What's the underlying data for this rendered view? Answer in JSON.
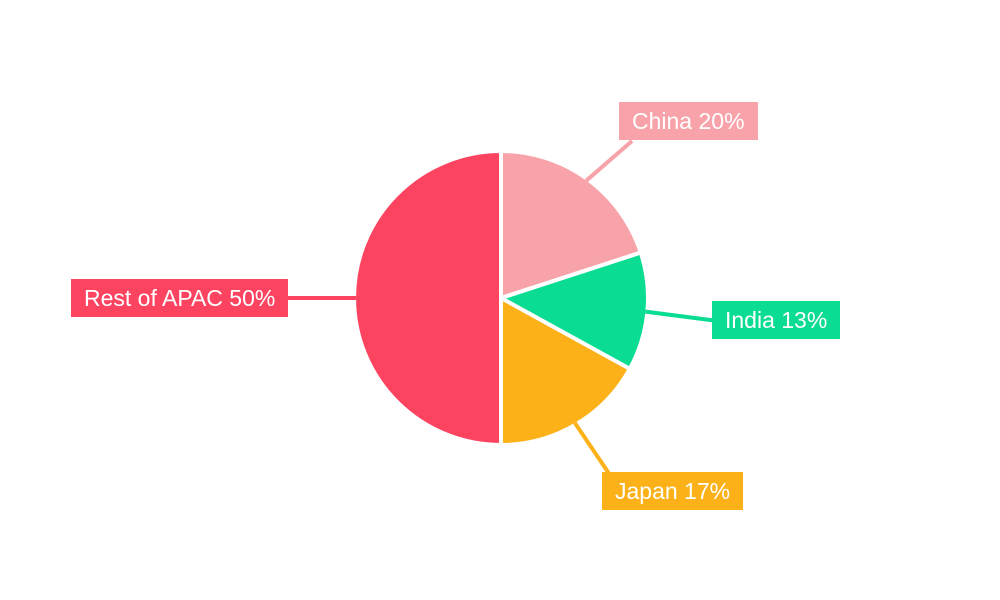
{
  "chart_data": {
    "type": "pie",
    "direction": "clockwise",
    "start_angle_deg": 0,
    "legend_position": "none",
    "background": "#FFFFFF",
    "label_text_color": "#FFFFFF",
    "slices": [
      {
        "label": "China",
        "value": 20,
        "display": "China 20%",
        "color": "#F7A3A9"
      },
      {
        "label": "India",
        "value": 13,
        "display": "India 13%",
        "color": "#0ADC92"
      },
      {
        "label": "Japan",
        "value": 17,
        "display": "Japan 17%",
        "color": "#FBB117"
      },
      {
        "label": "Rest of APAC",
        "value": 50,
        "display": "Rest of APAC 50%",
        "color": "#FC4460"
      }
    ]
  }
}
